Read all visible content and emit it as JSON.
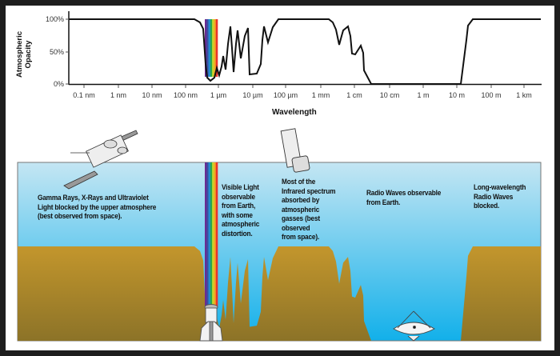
{
  "chart": {
    "y_axis_label": "Atmospheric Opacity",
    "y_ticks": [
      "100%",
      "50%",
      "0%"
    ],
    "x_axis_label": "Wavelength",
    "x_ticks": [
      "0.1 nm",
      "1 nm",
      "10 nm",
      "100 nm",
      "1 µm",
      "10 µm",
      "100 µm",
      "1 mm",
      "1 cm",
      "10 cm",
      "1 m",
      "10 m",
      "100 m",
      "1 km"
    ]
  },
  "annotations": {
    "gamma": "Gamma Rays, X-Rays and Ultraviolet\nLight blocked by the upper atmosphere\n(best observed from space).",
    "visible": "Visible Light\nobservable\nfrom Earth,\nwith some\natmospheric\ndistortion.",
    "infrared": "Most of the\nInfrared spectrum\nabsorbed by\natmospheric\ngasses (best\nobserved\nfrom space).",
    "radio": "Radio Waves observable\nfrom Earth.",
    "long_radio": "Long-wavelength\nRadio Waves\nblocked."
  },
  "colors": {
    "sky_top": "#c4e6f3",
    "sky_bottom": "#12b0ea",
    "ground_top": "#c3962c",
    "ground_bottom": "#8c7328",
    "rainbow": [
      "#6a2c91",
      "#3b4ea3",
      "#1f8fd0",
      "#2aa84a",
      "#c8d42a",
      "#f5a623",
      "#e8352b"
    ]
  }
}
